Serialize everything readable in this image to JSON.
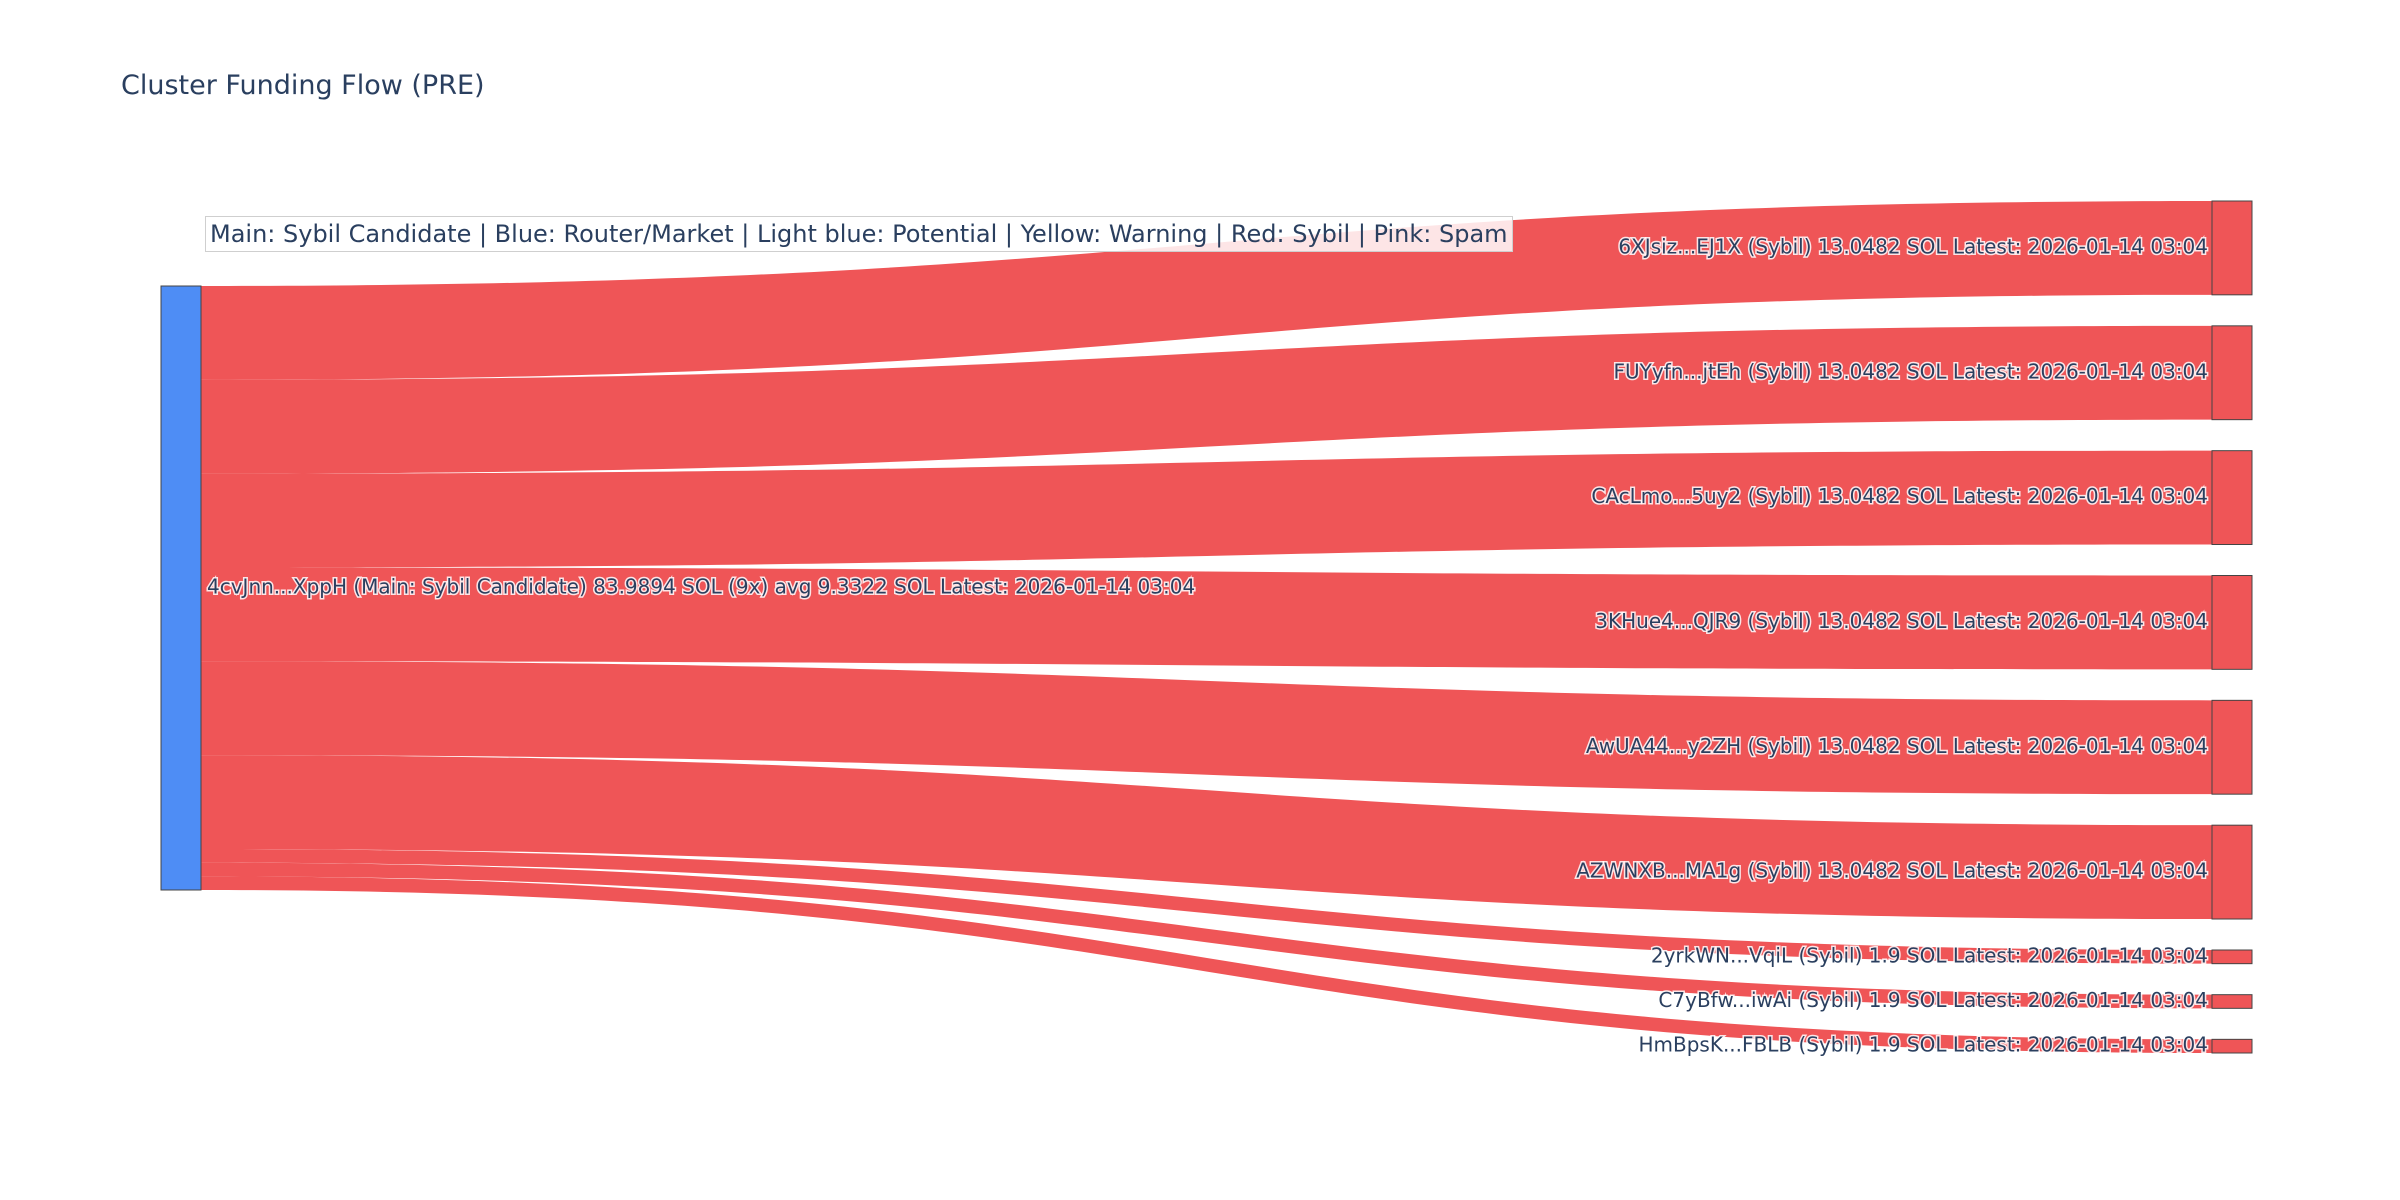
{
  "chart_data": {
    "type": "sankey",
    "title": "Cluster Funding Flow (PRE)",
    "annotation": "Main: Sybil Candidate  |  Blue: Router/Market | Light blue: Potential | Yellow: Warning | Red: Sybil | Pink: Spam",
    "colors": {
      "source_node": "#4e8df5",
      "target_node": "#ef5557",
      "link": "#ef5557",
      "node_border": "#444444"
    },
    "source": {
      "id": "4cvJnn...XppH",
      "label": "4cvJnn...XppH (Main: Sybil Candidate) 83.9894 SOL (9x) avg 9.3322 SOL Latest: 2026-01-14 03:04",
      "value": 83.9894
    },
    "targets": [
      {
        "label": "6XJsiz...EJ1X (Sybil) 13.0482 SOL Latest: 2026-01-14 03:04",
        "value": 13.0482
      },
      {
        "label": "FUYyfn...jtEh (Sybil) 13.0482 SOL Latest: 2026-01-14 03:04",
        "value": 13.0482
      },
      {
        "label": "CAcLmo...5uy2 (Sybil) 13.0482 SOL Latest: 2026-01-14 03:04",
        "value": 13.0482
      },
      {
        "label": "3KHue4...QJR9 (Sybil) 13.0482 SOL Latest: 2026-01-14 03:04",
        "value": 13.0482
      },
      {
        "label": "AwUA44...y2ZH (Sybil) 13.0482 SOL Latest: 2026-01-14 03:04",
        "value": 13.0482
      },
      {
        "label": "AZWNXB...MA1g (Sybil) 13.0482 SOL Latest: 2026-01-14 03:04",
        "value": 13.0482
      },
      {
        "label": "2yrkWN...VqiL (Sybil) 1.9 SOL Latest: 2026-01-14 03:04",
        "value": 1.9
      },
      {
        "label": "C7yBfw...iwAi (Sybil) 1.9 SOL Latest: 2026-01-14 03:04",
        "value": 1.9
      },
      {
        "label": "HmBpsK...FBLB (Sybil) 1.9 SOL Latest: 2026-01-14 03:04",
        "value": 1.9
      }
    ]
  }
}
